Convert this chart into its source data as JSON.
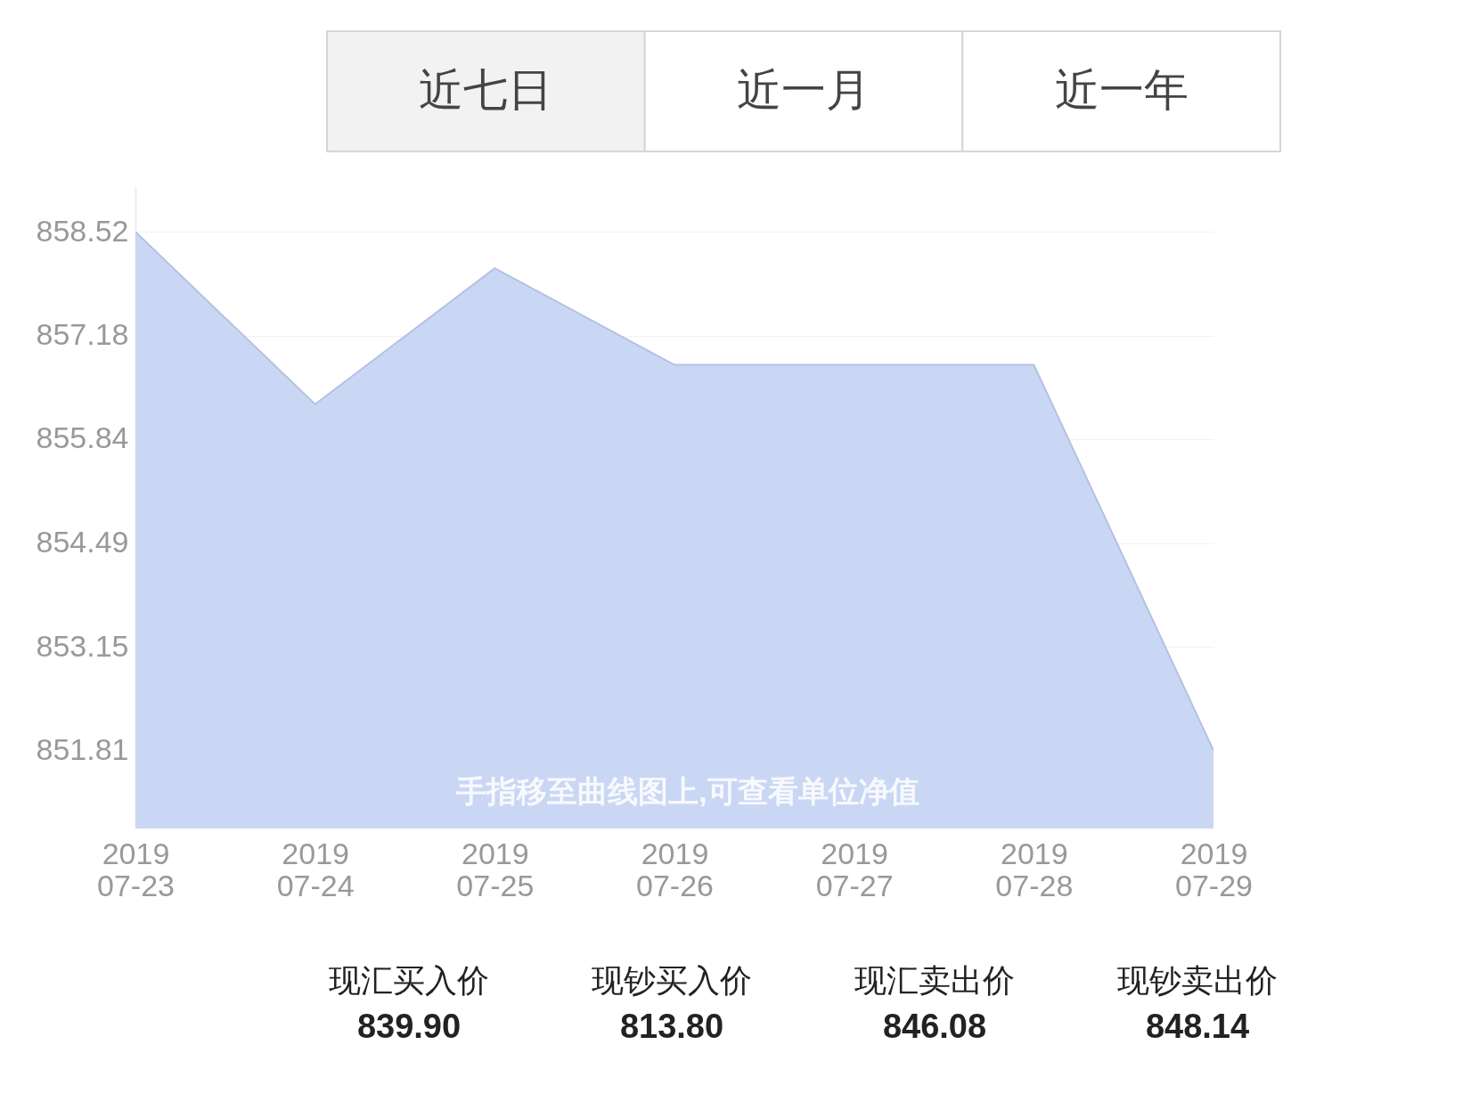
{
  "chart_data": [
    {
      "type": "other",
      "annotations": [
        "近七日",
        "近一月",
        "近一年"
      ]
    },
    {
      "type": "area",
      "categories": [
        "2019 07-23",
        "2019 07-24",
        "2019 07-25",
        "2019 07-26",
        "2019 07-27",
        "2019 07-28",
        "2019 07-29"
      ],
      "series": [
        {
          "color": "#cad7f4",
          "values": [
            858.52,
            856.29,
            858.05,
            856.8,
            856.8,
            856.8,
            851.81
          ]
        }
      ],
      "ylim": [
        850.8,
        859.1
      ],
      "yticks": [
        851.81,
        853.15,
        854.49,
        855.84,
        857.18,
        858.52
      ],
      "grid": "y",
      "annotations": [
        "手指移至曲线图上,可查看单位净值"
      ]
    },
    {
      "type": "other",
      "annotations": [
        "现汇买入价",
        "839.90",
        "现钞买入价",
        "813.80",
        "现汇卖出价",
        "846.08",
        "现钞卖出价",
        "848.14"
      ]
    }
  ]
}
